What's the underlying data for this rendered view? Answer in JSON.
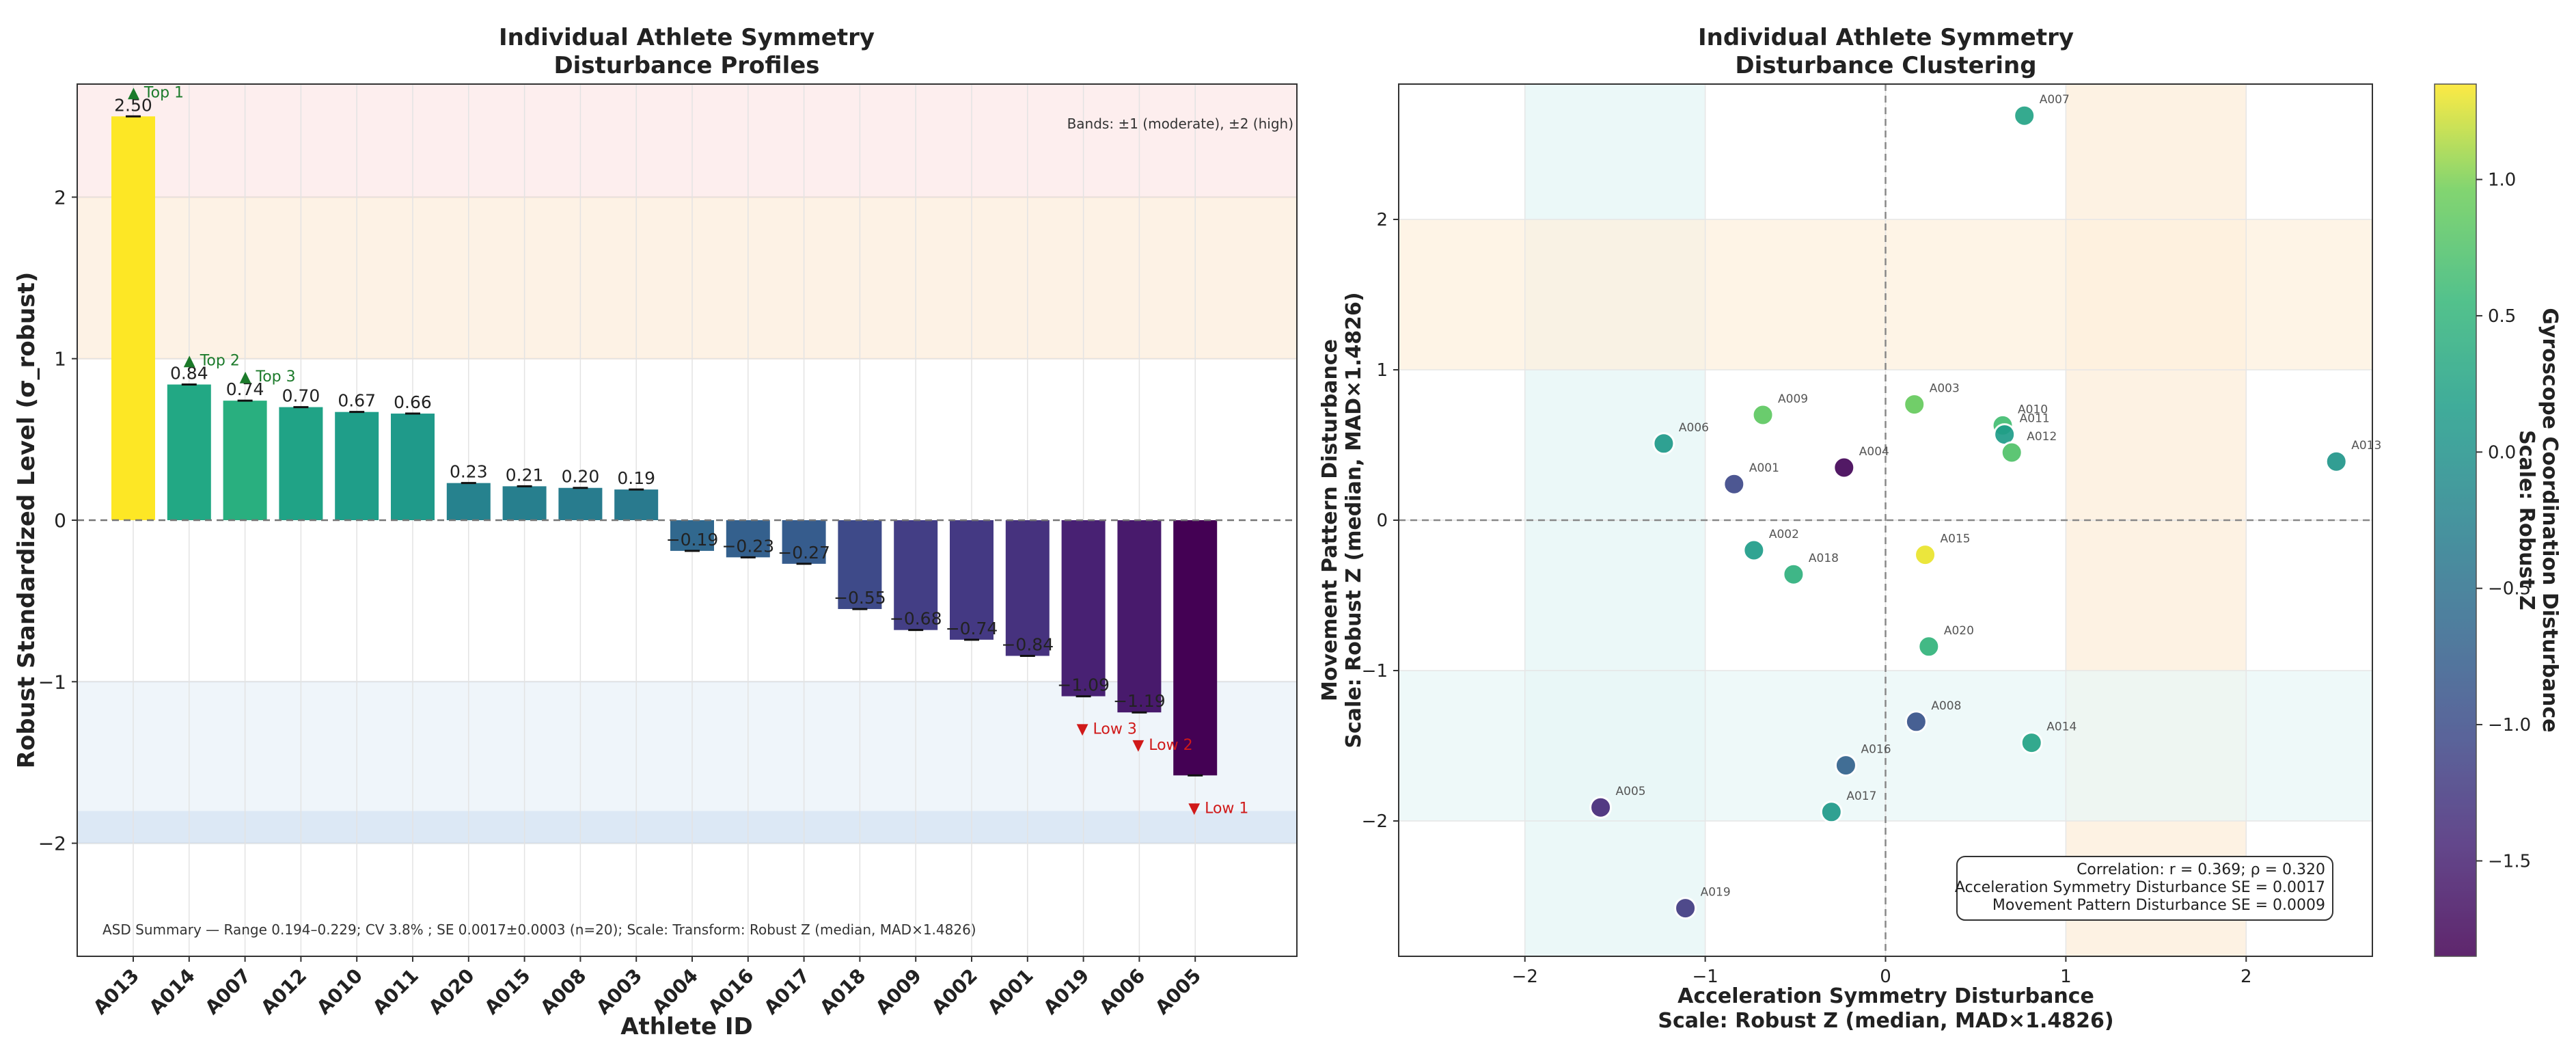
{
  "chart_data": [
    {
      "type": "bar",
      "title_lines": [
        "Individual Athlete Symmetry",
        "Disturbance Profiles"
      ],
      "xlabel": "Athlete ID",
      "ylabel": "Robust Standardized Level (σ_robust)",
      "ylim": [
        -2.7,
        2.7
      ],
      "yticks": [
        -2,
        -1,
        0,
        1,
        2
      ],
      "ytick_labels": [
        "−2",
        "−1",
        "0",
        "1",
        "2"
      ],
      "categories": [
        "A013",
        "A014",
        "A007",
        "A012",
        "A010",
        "A011",
        "A020",
        "A015",
        "A008",
        "A003",
        "A004",
        "A016",
        "A017",
        "A018",
        "A009",
        "A002",
        "A001",
        "A019",
        "A006",
        "A005"
      ],
      "values": [
        2.5,
        0.84,
        0.74,
        0.7,
        0.67,
        0.66,
        0.23,
        0.21,
        0.2,
        0.19,
        -0.19,
        -0.23,
        -0.27,
        -0.55,
        -0.68,
        -0.74,
        -0.84,
        -1.09,
        -1.19,
        -1.58
      ],
      "value_labels": [
        "2.50",
        "0.84",
        "0.74",
        "0.70",
        "0.67",
        "0.66",
        "0.23",
        "0.21",
        "0.20",
        "0.19",
        "−0.19",
        "−0.23",
        "−0.27",
        "−0.55",
        "−0.68",
        "−0.74",
        "−0.84",
        "−1.09",
        "−1.19",
        ""
      ],
      "bar_colors": [
        "#fde725",
        "#22a884",
        "#29af7f",
        "#20a386",
        "#1f9e89",
        "#1f9a8a",
        "#26828e",
        "#277f8e",
        "#287c8e",
        "#297a8e",
        "#31688e",
        "#34608d",
        "#365c8d",
        "#3e4a89",
        "#433e85",
        "#443983",
        "#46327e",
        "#482173",
        "#481a6c",
        "#440154"
      ],
      "annotations": [
        {
          "bar": 0,
          "text": "▲ Top 1",
          "kind": "top"
        },
        {
          "bar": 1,
          "text": "▲ Top 2",
          "kind": "top"
        },
        {
          "bar": 2,
          "text": "▲ Top 3",
          "kind": "top"
        },
        {
          "bar": 17,
          "text": "▼ Low 3",
          "kind": "low"
        },
        {
          "bar": 18,
          "text": "▼ Low 2",
          "kind": "low"
        },
        {
          "bar": 19,
          "text": "▼ Low 1",
          "kind": "low"
        }
      ],
      "bands_note": "Bands: ±1 (moderate), ±2 (high)",
      "summary": "ASD Summary — Range 0.194–0.229; CV 3.8% ; SE 0.0017±0.0003 (n=20); Scale: Transform: Robust Z (median, MAD×1.4826)"
    },
    {
      "type": "scatter",
      "title_lines": [
        "Individual Athlete Symmetry",
        "Disturbance Clustering"
      ],
      "xlabel_lines": [
        "Acceleration Symmetry Disturbance",
        "Scale: Robust Z (median, MAD×1.4826)"
      ],
      "ylabel_lines": [
        "Movement Pattern Disturbance",
        "Scale: Robust Z (median, MAD×1.4826)"
      ],
      "xlim": [
        -2.7,
        2.7
      ],
      "ylim": [
        -2.9,
        2.9
      ],
      "xticks": [
        -2,
        -1,
        0,
        1,
        2
      ],
      "xtick_labels": [
        "−2",
        "−1",
        "0",
        "1",
        "2"
      ],
      "yticks": [
        -2,
        -1,
        0,
        1,
        2
      ],
      "ytick_labels": [
        "−2",
        "−1",
        "0",
        "1",
        "2"
      ],
      "points": [
        {
          "id": "A007",
          "x": 0.77,
          "y": 2.69,
          "c": 0.25
        },
        {
          "id": "A013",
          "x": 2.5,
          "y": 0.39,
          "c": 0.05
        },
        {
          "id": "A009",
          "x": -0.68,
          "y": 0.7,
          "c": 0.85
        },
        {
          "id": "A003",
          "x": 0.16,
          "y": 0.77,
          "c": 0.9
        },
        {
          "id": "A010",
          "x": 0.65,
          "y": 0.63,
          "c": 0.65
        },
        {
          "id": "A011",
          "x": 0.66,
          "y": 0.57,
          "c": 0.15
        },
        {
          "id": "A012",
          "x": 0.7,
          "y": 0.45,
          "c": 0.75
        },
        {
          "id": "A006",
          "x": -1.23,
          "y": 0.51,
          "c": 0.1
        },
        {
          "id": "A001",
          "x": -0.84,
          "y": 0.24,
          "c": -1.05
        },
        {
          "id": "A004",
          "x": -0.23,
          "y": 0.35,
          "c": -1.8
        },
        {
          "id": "A002",
          "x": -0.73,
          "y": -0.2,
          "c": 0.15
        },
        {
          "id": "A018",
          "x": -0.51,
          "y": -0.36,
          "c": 0.45
        },
        {
          "id": "A015",
          "x": 0.22,
          "y": -0.23,
          "c": 1.3
        },
        {
          "id": "A020",
          "x": 0.24,
          "y": -0.84,
          "c": 0.5
        },
        {
          "id": "A008",
          "x": 0.17,
          "y": -1.34,
          "c": -0.9
        },
        {
          "id": "A014",
          "x": 0.81,
          "y": -1.48,
          "c": 0.25
        },
        {
          "id": "A016",
          "x": -0.22,
          "y": -1.63,
          "c": -0.7
        },
        {
          "id": "A017",
          "x": -0.3,
          "y": -1.94,
          "c": 0.1
        },
        {
          "id": "A005",
          "x": -1.58,
          "y": -1.91,
          "c": -1.4
        },
        {
          "id": "A019",
          "x": -1.11,
          "y": -2.58,
          "c": -1.2
        }
      ],
      "stats_lines": [
        "Correlation: r = 0.369; ρ = 0.320",
        "Acceleration Symmetry Disturbance SE = 0.0017",
        "Movement Pattern Disturbance SE = 0.0009"
      ],
      "colorbar": {
        "label_lines": [
          "Gyroscope Coordination Disturbance",
          "Scale: Robust Z"
        ],
        "range": [
          -1.85,
          1.35
        ],
        "ticks": [
          1.0,
          0.5,
          0.0,
          -0.5,
          -1.0,
          -1.5
        ],
        "tick_labels": [
          "1.0",
          "0.5",
          "0.0",
          "−0.5",
          "−1.0",
          "−1.5"
        ]
      }
    }
  ]
}
